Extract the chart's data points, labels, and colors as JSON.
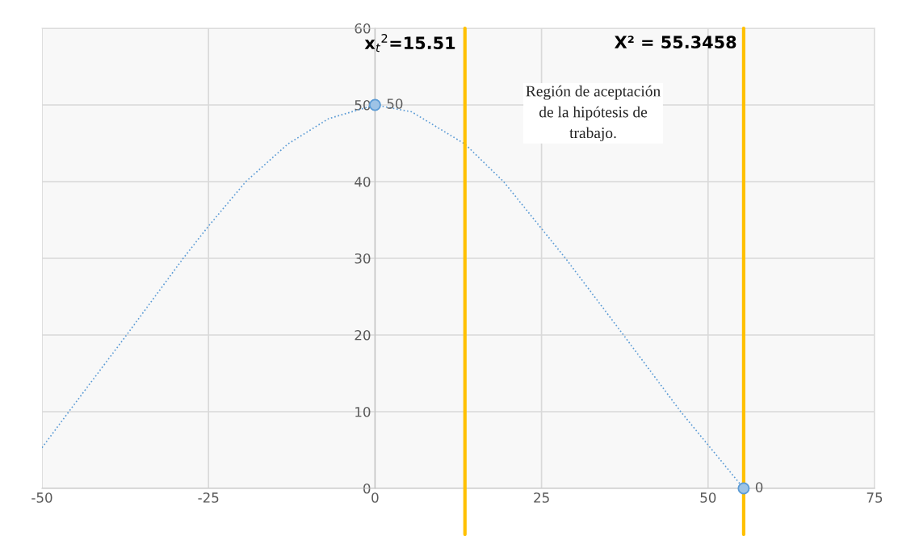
{
  "chart_data": {
    "type": "line",
    "xlim": [
      -50,
      75
    ],
    "xticks": [
      -50,
      -25,
      0,
      25,
      50,
      75
    ],
    "ylim": [
      0,
      60
    ],
    "yticks": [
      0,
      10,
      20,
      30,
      40,
      50,
      60
    ],
    "grid": true,
    "series": [
      {
        "color": "#5b9bd5",
        "line_style": "dotted",
        "marker": "none",
        "x": [
          -50,
          -45.8,
          -37.3,
          -28.8,
          -25,
          -19.4,
          -13.1,
          -7.0,
          0,
          5.5,
          13.5,
          19.3,
          28.6,
          37.3,
          45.9,
          55.3458
        ],
        "values": [
          5.3,
          10.2,
          20,
          30,
          34.2,
          40,
          44.9,
          48.2,
          50,
          49.1,
          44.9,
          40,
          30,
          20,
          10,
          0
        ]
      },
      {
        "type": "scatter",
        "color": "#5b9bd5",
        "marker": "circle",
        "data_labels": true,
        "x": [
          0,
          55.3458
        ],
        "values": [
          50,
          0
        ]
      }
    ],
    "ref_lines": [
      {
        "axis": "x",
        "value": 13.5,
        "color": "#ffc000"
      },
      {
        "axis": "x",
        "value": 55.3458,
        "label": "X² = 55.3458",
        "color": "#ffc000"
      }
    ],
    "annotations": [
      {
        "text": "x$_{t}$$^{2}$=15.51",
        "x": 13.5,
        "y": 58
      },
      "Región de aceptación de la hipótesis de trabajo."
    ]
  }
}
